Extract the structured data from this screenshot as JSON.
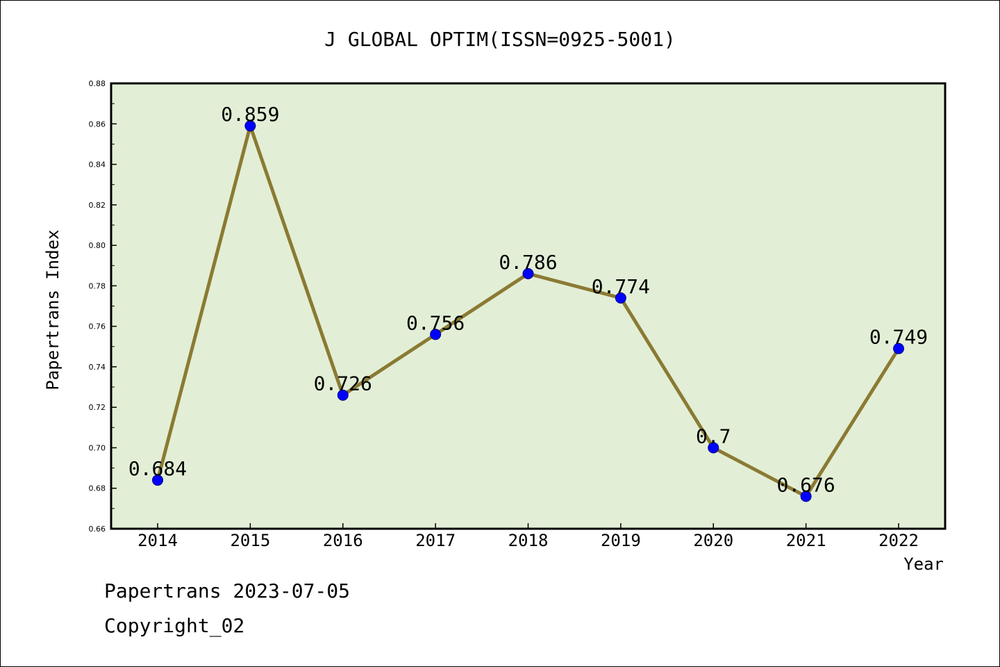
{
  "chart_data": {
    "type": "line",
    "title": "J GLOBAL OPTIM(ISSN=0925-5001)",
    "xlabel": "Year",
    "ylabel": "Papertrans Index",
    "categories": [
      "2014",
      "2015",
      "2016",
      "2017",
      "2018",
      "2019",
      "2020",
      "2021",
      "2022"
    ],
    "values": [
      0.684,
      0.859,
      0.726,
      0.756,
      0.786,
      0.774,
      0.7,
      0.676,
      0.749
    ],
    "data_labels": [
      "0.684",
      "0.859",
      "0.726",
      "0.756",
      "0.786",
      "0.774",
      "0.7",
      "0.676",
      "0.749"
    ],
    "ylim": [
      0.66,
      0.88
    ],
    "yticks": [
      "0.66",
      "0.68",
      "0.70",
      "0.72",
      "0.74",
      "0.76",
      "0.78",
      "0.80",
      "0.82",
      "0.84",
      "0.86",
      "0.88"
    ],
    "colors": {
      "line": "#8B7A33",
      "marker": "#0000FF",
      "plot_bg": "#E2EFD6",
      "axes": "#000000"
    }
  },
  "footer": {
    "line1": "Papertrans 2023-07-05",
    "line2": "Copyright_02"
  }
}
